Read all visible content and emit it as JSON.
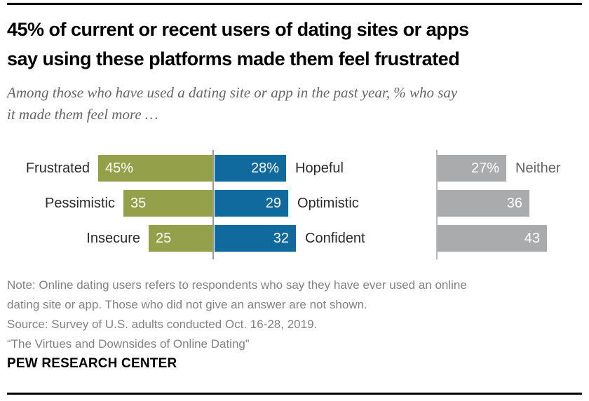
{
  "header": {
    "title_lines": [
      "45% of current or recent users of dating sites or apps",
      "say using these platforms made them feel frustrated"
    ],
    "subtitle_lines": [
      "Among those who have used a dating site or app in the past year, % who say",
      "it made them feel more …"
    ]
  },
  "chart_data": {
    "type": "bar",
    "layout": "diverging-horizontal-with-neither-column",
    "unit": "%",
    "xlim_per_side": [
      0,
      50
    ],
    "grid": false,
    "neither_label": "Neither",
    "categories_negative": [
      "Frustrated",
      "Pessimistic",
      "Insecure"
    ],
    "categories_positive": [
      "Hopeful",
      "Optimistic",
      "Confident"
    ],
    "series": [
      {
        "name": "negative-feeling",
        "color": "#94a14a",
        "values": [
          45,
          35,
          25
        ]
      },
      {
        "name": "positive-feeling",
        "color": "#106a9e",
        "values": [
          28,
          29,
          32
        ]
      },
      {
        "name": "neither",
        "color": "#a9abad",
        "values": [
          27,
          36,
          43
        ]
      }
    ],
    "rows": [
      {
        "negative_label": "Frustrated",
        "negative_value": 45,
        "negative_display": "45%",
        "positive_label": "Hopeful",
        "positive_value": 28,
        "positive_display": "28%",
        "neither_value": 27,
        "neither_display": "27%"
      },
      {
        "negative_label": "Pessimistic",
        "negative_value": 35,
        "negative_display": "35",
        "positive_label": "Optimistic",
        "positive_value": 29,
        "positive_display": "29",
        "neither_value": 36,
        "neither_display": "36"
      },
      {
        "negative_label": "Insecure",
        "negative_value": 25,
        "negative_display": "25",
        "positive_label": "Confident",
        "positive_value": 32,
        "positive_display": "32",
        "neither_value": 43,
        "neither_display": "43"
      }
    ]
  },
  "colors": {
    "negative_bar": "#94a14a",
    "positive_bar": "#106a9e",
    "neither_bar": "#a9abad",
    "axis_divider": "#9a9a9a",
    "neither_divider": "#b4b6b8",
    "neither_label_text": "#636466",
    "row_label_text": "#2b2b2b",
    "note_text": "#808285"
  },
  "notes": {
    "lines": [
      "Note: Online dating users refers to respondents who say they have ever used an online",
      "dating site or app. Those who did not give an answer are not shown."
    ],
    "source": "Source: Survey of U.S. adults conducted Oct. 16-28, 2019.",
    "report": "“The Virtues and Downsides of Online Dating”"
  },
  "footer": {
    "brand": "PEW RESEARCH CENTER"
  }
}
